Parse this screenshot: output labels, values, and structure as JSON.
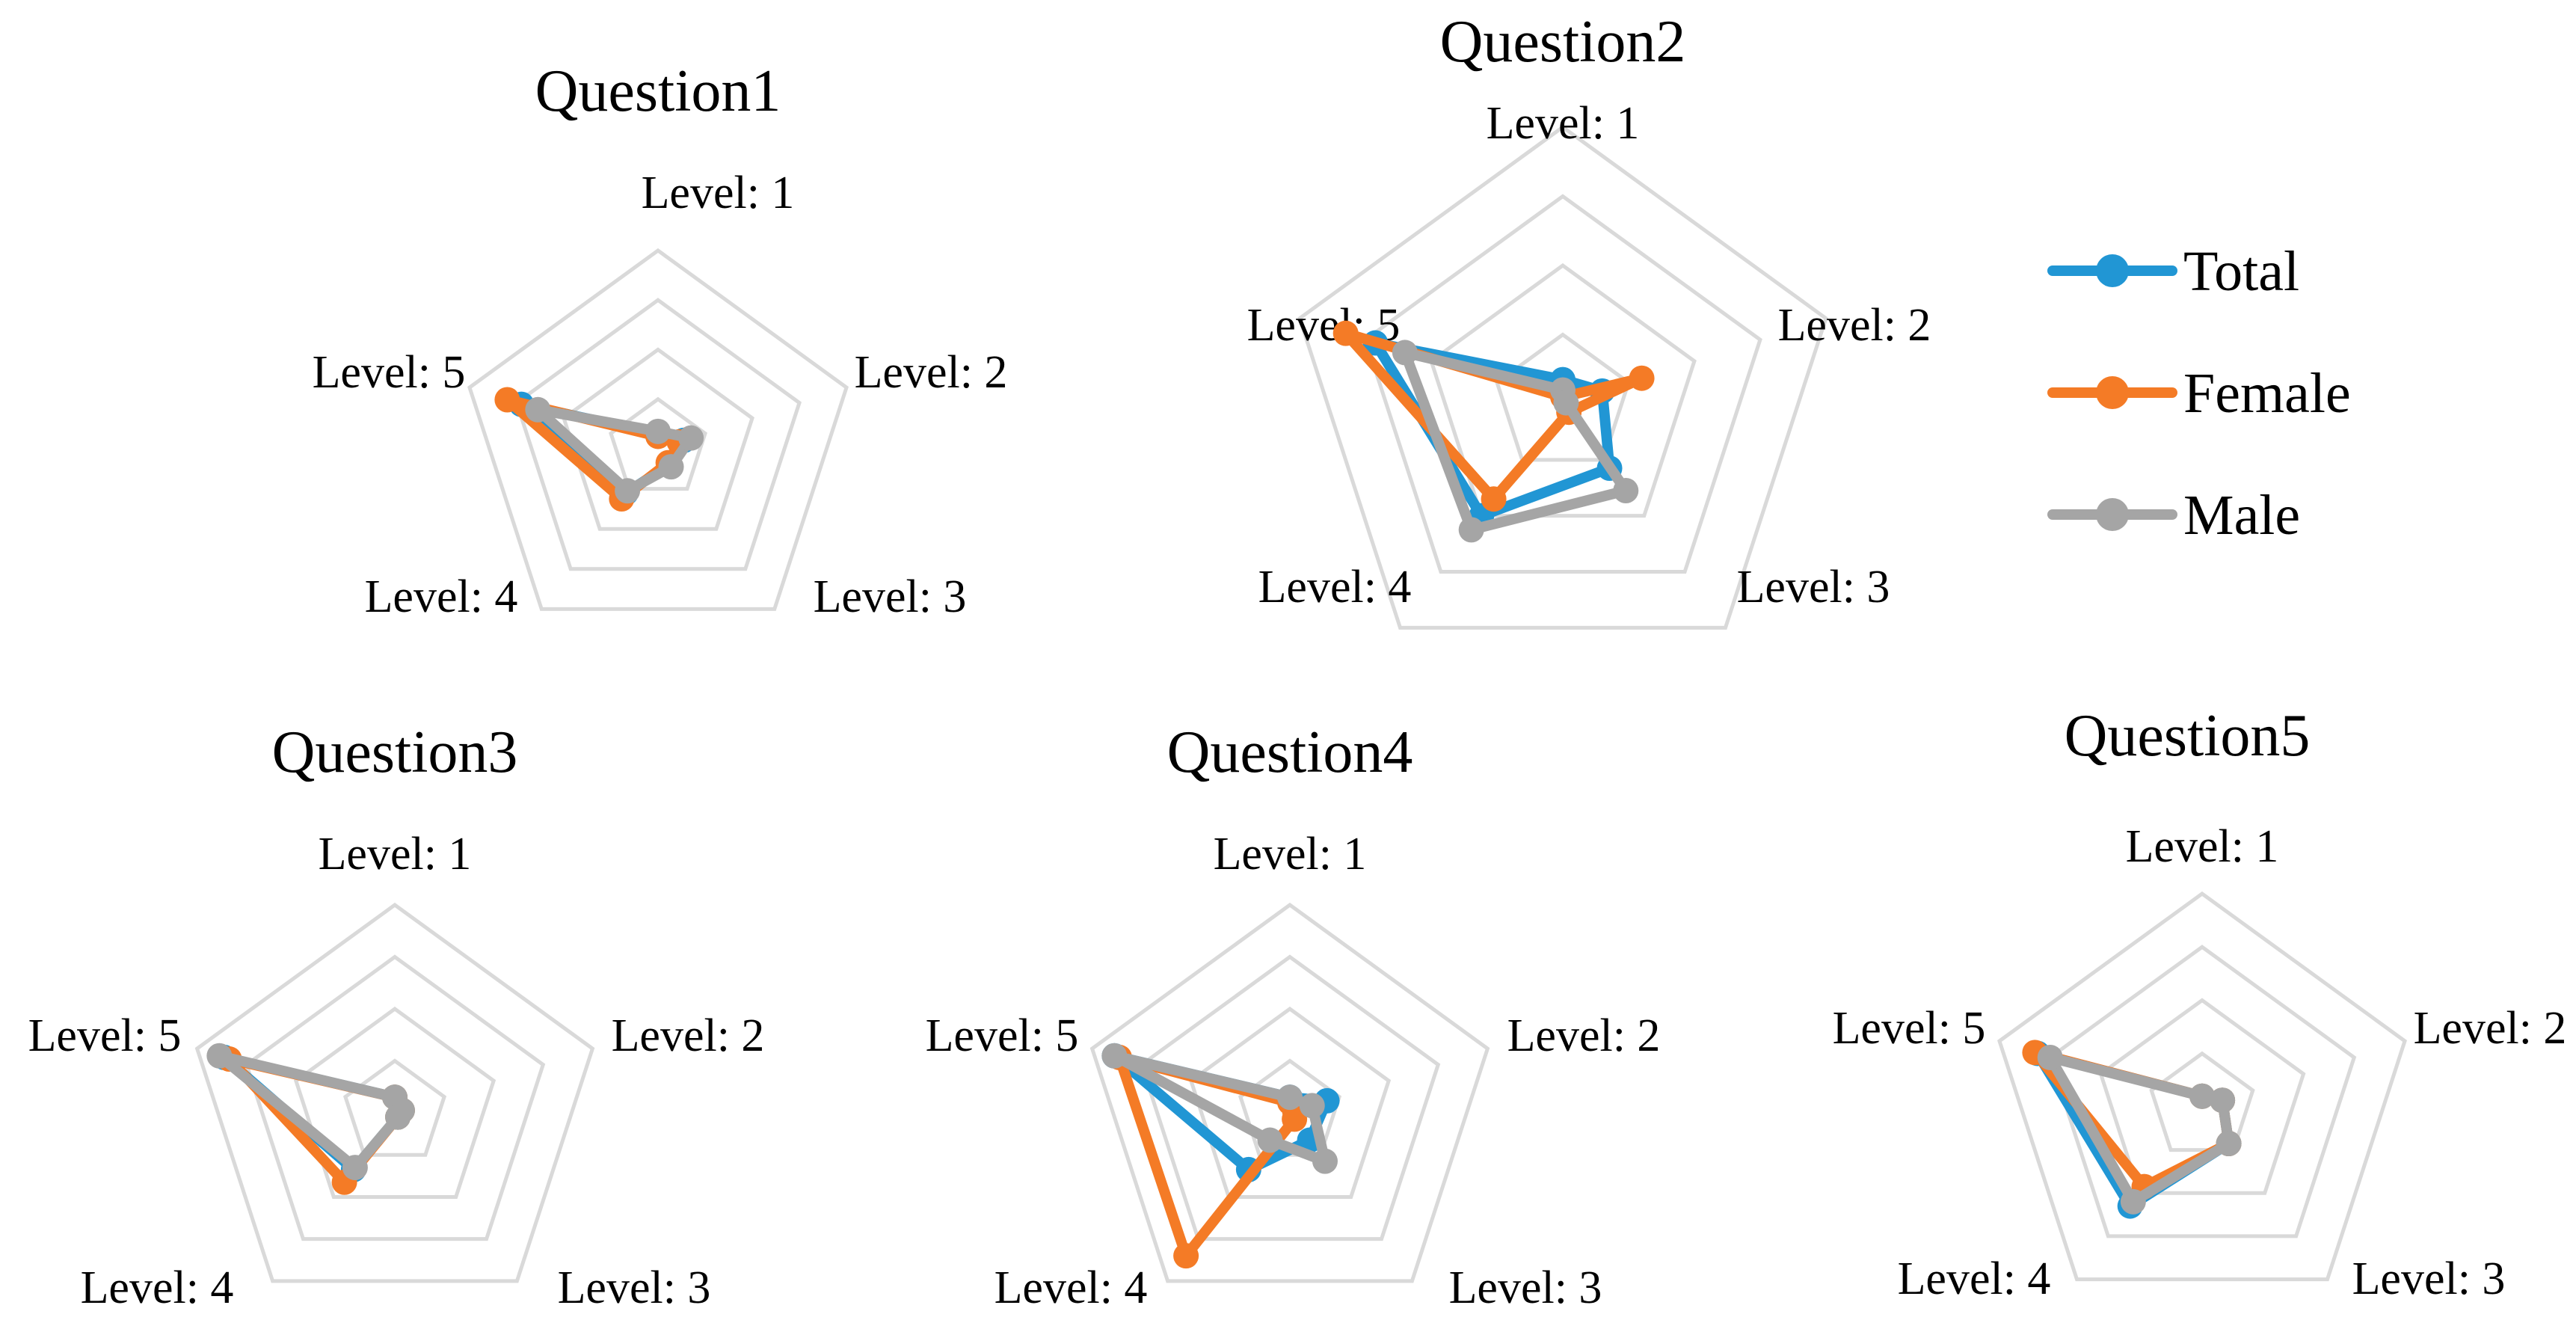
{
  "chart_data": [
    {
      "type": "radar",
      "title": "Question1",
      "categories": [
        "Level: 1",
        "Level: 2",
        "Level: 3",
        "Level: 4",
        "Level: 5"
      ],
      "rmax": 4,
      "series": [
        {
          "name": "Total",
          "values": [
            0.3,
            0.55,
            0.4,
            1.1,
            2.9
          ]
        },
        {
          "name": "Female",
          "values": [
            0.25,
            0.45,
            0.35,
            1.25,
            3.2
          ]
        },
        {
          "name": "Male",
          "values": [
            0.35,
            0.7,
            0.45,
            1.05,
            2.55
          ]
        }
      ]
    },
    {
      "type": "radar",
      "title": "Question2",
      "categories": [
        "Level: 1",
        "Level: 2",
        "Level: 3",
        "Level: 4",
        "Level: 5"
      ],
      "rmax": 4,
      "series": [
        {
          "name": "Total",
          "values": [
            0.35,
            0.6,
            1.15,
            2.0,
            2.85
          ]
        },
        {
          "name": "Female",
          "values": [
            0.1,
            1.2,
            0.15,
            1.7,
            3.3
          ]
        },
        {
          "name": "Male",
          "values": [
            0.2,
            0.05,
            1.55,
            2.25,
            2.4
          ]
        }
      ]
    },
    {
      "type": "radar",
      "title": "Question3",
      "categories": [
        "Level: 1",
        "Level: 2",
        "Level: 3",
        "Level: 4",
        "Level: 5"
      ],
      "rmax": 4,
      "series": [
        {
          "name": "Total",
          "values": [
            0.3,
            0.15,
            0.1,
            1.35,
            3.45
          ]
        },
        {
          "name": "Female",
          "values": [
            0.3,
            0.15,
            0.1,
            1.65,
            3.35
          ]
        },
        {
          "name": "Male",
          "values": [
            0.3,
            0.15,
            0.1,
            1.3,
            3.55
          ]
        }
      ]
    },
    {
      "type": "radar",
      "title": "Question4",
      "categories": [
        "Level: 1",
        "Level: 2",
        "Level: 3",
        "Level: 4",
        "Level: 5"
      ],
      "rmax": 4,
      "series": [
        {
          "name": "Total",
          "values": [
            0.3,
            0.75,
            0.65,
            1.35,
            3.55
          ]
        },
        {
          "name": "Female",
          "values": [
            0.2,
            0.1,
            0.15,
            3.4,
            3.45
          ]
        },
        {
          "name": "Male",
          "values": [
            0.3,
            0.45,
            1.15,
            0.65,
            3.55
          ]
        }
      ]
    },
    {
      "type": "radar",
      "title": "Question5",
      "categories": [
        "Level: 1",
        "Level: 2",
        "Level: 3",
        "Level: 4",
        "Level: 5"
      ],
      "rmax": 4,
      "series": [
        {
          "name": "Total",
          "values": [
            0.2,
            0.4,
            0.85,
            2.3,
            3.25
          ]
        },
        {
          "name": "Female",
          "values": [
            0.2,
            0.4,
            0.85,
            1.85,
            3.3
          ]
        },
        {
          "name": "Male",
          "values": [
            0.2,
            0.4,
            0.85,
            2.2,
            3.0
          ]
        }
      ]
    }
  ],
  "legend": {
    "items": [
      {
        "name": "Total",
        "color": "#2196d4"
      },
      {
        "name": "Female",
        "color": "#f47b26"
      },
      {
        "name": "Male",
        "color": "#a5a5a5"
      }
    ]
  }
}
